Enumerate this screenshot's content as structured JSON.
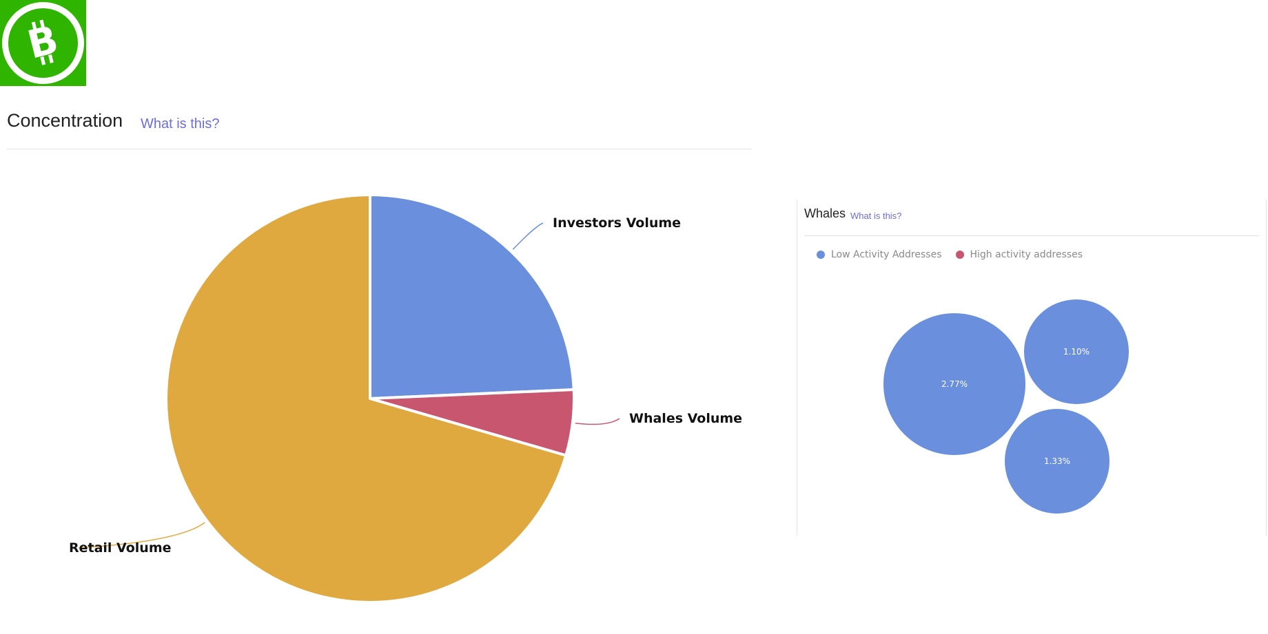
{
  "logo": {
    "icon": "bitcoin-cash-logo-icon",
    "color": "#2fb400"
  },
  "concentration": {
    "title": "Concentration",
    "help_link": "What is this?"
  },
  "whales": {
    "title": "Whales",
    "help_link": "What is this?",
    "legend": [
      {
        "label": "Low Activity Addresses",
        "color": "#6a8fdc"
      },
      {
        "label": "High activity addresses",
        "color": "#c9566f"
      }
    ]
  },
  "chart_data": [
    {
      "type": "pie",
      "title": "",
      "slices": [
        {
          "label": "Investors Volume",
          "value": 24.3,
          "color": "#6a8fdc"
        },
        {
          "label": "Whales Volume",
          "value": 5.2,
          "color": "#c9566f"
        },
        {
          "label": "Retail Volume",
          "value": 70.5,
          "color": "#e0a940"
        }
      ],
      "start_angle_deg": 0,
      "direction": "clockwise"
    },
    {
      "type": "bubble",
      "title": "",
      "series": [
        {
          "name": "Low Activity Addresses",
          "values": [
            2.77,
            1.1,
            1.33
          ],
          "labels": [
            "2.77%",
            "1.10%",
            "1.33%"
          ]
        },
        {
          "name": "High activity addresses",
          "values": []
        }
      ],
      "unit": "%"
    }
  ]
}
